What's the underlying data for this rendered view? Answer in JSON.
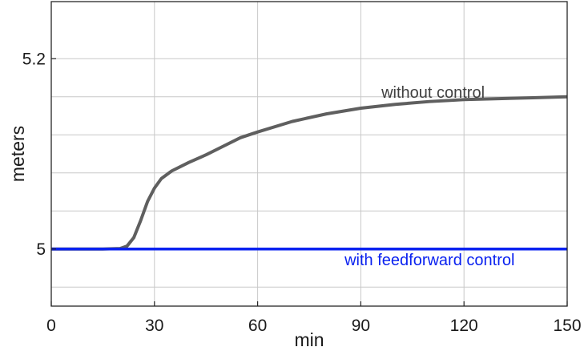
{
  "chart_data": {
    "type": "line",
    "xlabel": "min",
    "ylabel": "meters",
    "xlim": [
      0,
      150
    ],
    "ylim": [
      4.94,
      5.26
    ],
    "xticks": [
      0,
      30,
      60,
      90,
      120,
      150
    ],
    "xtick_labels": [
      "0",
      "30",
      "60",
      "90",
      "120",
      "150"
    ],
    "yticks": [
      5,
      5.2
    ],
    "ytick_labels": [
      "5",
      "5.2"
    ],
    "grid": true,
    "grid_x": [
      30,
      60,
      90,
      120
    ],
    "grid_y": [
      4.96,
      5.04,
      5.08,
      5.12,
      5.16,
      5.2
    ],
    "series": [
      {
        "name": "without control",
        "color": "#5f5f5f",
        "x": [
          0,
          15,
          20,
          22,
          24,
          26,
          28,
          30,
          32,
          35,
          40,
          45,
          50,
          55,
          60,
          70,
          80,
          90,
          100,
          110,
          120,
          130,
          140,
          150
        ],
        "y": [
          5.0,
          5.0,
          5.0005,
          5.003,
          5.012,
          5.03,
          5.05,
          5.064,
          5.074,
          5.082,
          5.091,
          5.099,
          5.108,
          5.117,
          5.123,
          5.134,
          5.142,
          5.148,
          5.152,
          5.155,
          5.157,
          5.158,
          5.159,
          5.16
        ]
      },
      {
        "name": "with feedforward control",
        "color": "#0a22f0",
        "x": [
          0,
          150
        ],
        "y": [
          5.0,
          5.0
        ]
      }
    ],
    "annotations": [
      {
        "text": "without control",
        "x": 111,
        "y": 5.165,
        "color": "#404040",
        "series": 0
      },
      {
        "text": "with feedforward control",
        "x": 110,
        "y": 4.989,
        "color": "#0a22f0",
        "series": 1
      }
    ]
  }
}
